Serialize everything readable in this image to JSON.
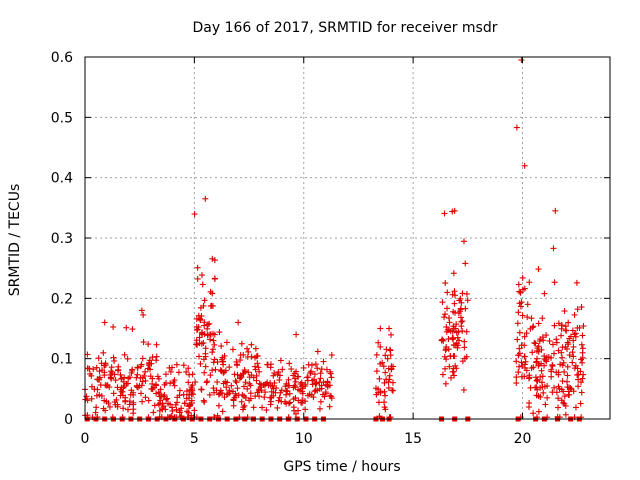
{
  "chart_data": {
    "type": "scatter",
    "title": "Day 166 of 2017, SRMTID for receiver msdr",
    "xlabel": "GPS time / hours",
    "ylabel": "SRMTID / TECUs",
    "xlim": [
      0,
      24
    ],
    "ylim": [
      0,
      0.6
    ],
    "xticks": [
      0,
      5,
      10,
      15,
      20
    ],
    "yticks": [
      0,
      0.1,
      0.2,
      0.3,
      0.4,
      0.5,
      0.6
    ],
    "grid": true,
    "marker": "plus",
    "color": "#e00000",
    "segments": [
      {
        "start": 0.0,
        "end": 1.8,
        "base": 0.055,
        "spread": 0.05,
        "n": 90,
        "peak": 0.16
      },
      {
        "start": 1.8,
        "end": 3.4,
        "base": 0.06,
        "spread": 0.045,
        "n": 80,
        "peak": 0.18
      },
      {
        "start": 3.4,
        "end": 5.0,
        "base": 0.03,
        "spread": 0.04,
        "n": 90,
        "peak": 0.09
      },
      {
        "start": 5.0,
        "end": 6.0,
        "base": 0.12,
        "spread": 0.09,
        "n": 80,
        "peak": 0.365
      },
      {
        "start": 6.0,
        "end": 8.0,
        "base": 0.06,
        "spread": 0.045,
        "n": 110,
        "peak": 0.16
      },
      {
        "start": 8.0,
        "end": 11.3,
        "base": 0.055,
        "spread": 0.035,
        "n": 150,
        "peak": 0.14
      },
      {
        "start": 13.3,
        "end": 13.7,
        "base": 0.07,
        "spread": 0.05,
        "n": 20,
        "peak": 0.15
      },
      {
        "start": 13.7,
        "end": 14.1,
        "base": 0.06,
        "spread": 0.05,
        "n": 25,
        "peak": 0.15
      },
      {
        "start": 16.3,
        "end": 17.5,
        "base": 0.14,
        "spread": 0.06,
        "n": 90,
        "peak": 0.345
      },
      {
        "start": 19.7,
        "end": 20.2,
        "base": 0.12,
        "spread": 0.1,
        "n": 40,
        "peak": 0.595
      },
      {
        "start": 20.2,
        "end": 22.8,
        "base": 0.09,
        "spread": 0.08,
        "n": 180,
        "peak": 0.345
      }
    ],
    "zero_points": [
      0.1,
      0.5,
      0.9,
      1.3,
      1.7,
      2.1,
      2.5,
      2.9,
      3.3,
      3.7,
      4.1,
      4.5,
      4.9,
      5.3,
      5.7,
      6.1,
      6.5,
      6.9,
      7.3,
      7.7,
      8.1,
      8.5,
      8.9,
      9.3,
      9.7,
      10.1,
      10.5,
      10.9,
      13.3,
      13.6,
      13.9,
      16.3,
      16.9,
      17.5,
      19.8,
      20.6,
      21.0,
      21.6,
      22.2,
      22.6
    ]
  }
}
